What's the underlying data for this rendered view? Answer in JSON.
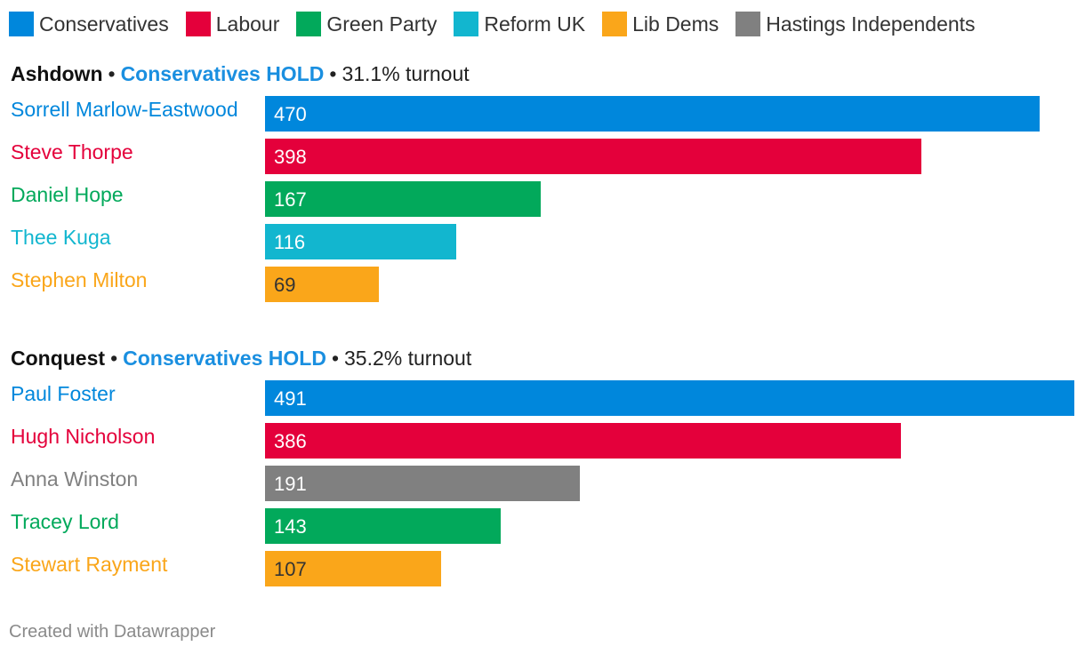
{
  "colors": {
    "Conservatives": "#0087dc",
    "Labour": "#e4003b",
    "Green Party": "#02a95b",
    "Reform UK": "#12b6cf",
    "Lib Dems": "#faa61a",
    "Hastings Independents": "#808080"
  },
  "legend": [
    "Conservatives",
    "Labour",
    "Green Party",
    "Reform UK",
    "Lib Dems",
    "Hastings Independents"
  ],
  "separator": "•",
  "credit": "Created with Datawrapper",
  "chart_data": {
    "type": "bar",
    "orientation": "horizontal",
    "max_value": 491,
    "wards": [
      {
        "name": "Ashdown",
        "result": "Conservatives HOLD",
        "turnout": "31.1% turnout",
        "candidates": [
          {
            "name": "Sorrell Marlow-Eastwood",
            "party": "Conservatives",
            "votes": 470
          },
          {
            "name": "Steve Thorpe",
            "party": "Labour",
            "votes": 398
          },
          {
            "name": "Daniel Hope",
            "party": "Green Party",
            "votes": 167
          },
          {
            "name": "Thee Kuga",
            "party": "Reform UK",
            "votes": 116
          },
          {
            "name": "Stephen Milton",
            "party": "Lib Dems",
            "votes": 69
          }
        ]
      },
      {
        "name": "Conquest",
        "result": "Conservatives HOLD",
        "turnout": "35.2% turnout",
        "candidates": [
          {
            "name": "Paul Foster",
            "party": "Conservatives",
            "votes": 491
          },
          {
            "name": "Hugh Nicholson",
            "party": "Labour",
            "votes": 386
          },
          {
            "name": "Anna Winston",
            "party": "Hastings Independents",
            "votes": 191
          },
          {
            "name": "Tracey Lord",
            "party": "Green Party",
            "votes": 143
          },
          {
            "name": "Stewart Rayment",
            "party": "Lib Dems",
            "votes": 107
          }
        ]
      }
    ]
  }
}
